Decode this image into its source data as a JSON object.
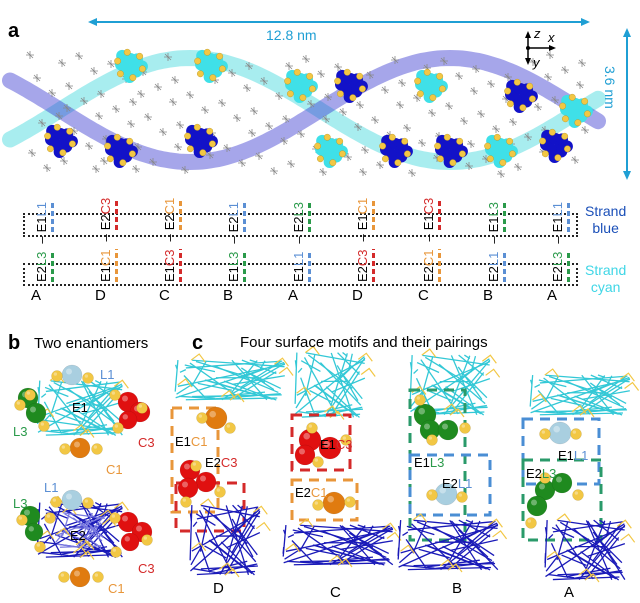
{
  "colors": {
    "blue_strand": "#1a1aa8",
    "cyan_strand": "#3fd6dc",
    "gold": "#f2c744",
    "dim_arrow": "#1f9fd4",
    "L1": "#5b8fd4",
    "L3": "#2a9a4a",
    "C1": "#e8963a",
    "C3": "#d42a2a",
    "L1_ball": "#a9cfe0",
    "L3_ball": "#1f8a1f",
    "C1_ball": "#e07b10",
    "C3_ball": "#e01010"
  },
  "panel_a": {
    "letter": "a",
    "length_label": "12.8 nm",
    "height_label": "3.6 nm",
    "axes": {
      "z": "z",
      "x": "x",
      "y": "y"
    },
    "strand_blue": [
      "Strand",
      "blue"
    ],
    "strand_cyan": [
      "Strand",
      "cyan"
    ],
    "columns": [
      {
        "motif": "A",
        "bottom": [
          {
            "t": "E2",
            "c": "k"
          },
          {
            "t": "L3",
            "c": "L3"
          }
        ],
        "top": [
          {
            "t": "E1",
            "c": "k"
          },
          {
            "t": "L1",
            "c": "L1"
          }
        ],
        "dash": "–"
      },
      {
        "motif": "D",
        "bottom": [
          {
            "t": "E1",
            "c": "k"
          },
          {
            "t": "C1",
            "c": "C1"
          }
        ],
        "top": [
          {
            "t": "E2",
            "c": "k"
          },
          {
            "t": "C3",
            "c": "C3"
          }
        ],
        "dash": "–"
      },
      {
        "motif": "C",
        "bottom": [
          {
            "t": "E1",
            "c": "k"
          },
          {
            "t": "C3",
            "c": "C3"
          }
        ],
        "top": [
          {
            "t": "E2",
            "c": "k"
          },
          {
            "t": "C1",
            "c": "C1"
          }
        ],
        "dash": "–"
      },
      {
        "motif": "B",
        "bottom": [
          {
            "t": "E1",
            "c": "k"
          },
          {
            "t": "L3",
            "c": "L3"
          }
        ],
        "top": [
          {
            "t": "E2",
            "c": "k"
          },
          {
            "t": "L1",
            "c": "L1"
          }
        ],
        "dash": "–"
      },
      {
        "motif": "A",
        "bottom": [
          {
            "t": "E1",
            "c": "k"
          },
          {
            "t": "L1",
            "c": "L1"
          }
        ],
        "top": [
          {
            "t": "E2",
            "c": "k"
          },
          {
            "t": "L3",
            "c": "L3"
          }
        ],
        "dash": "–"
      },
      {
        "motif": "D",
        "bottom": [
          {
            "t": "E2",
            "c": "k"
          },
          {
            "t": "C3",
            "c": "C3"
          }
        ],
        "top": [
          {
            "t": "E1",
            "c": "k"
          },
          {
            "t": "C1",
            "c": "C1"
          }
        ],
        "dash": "–"
      },
      {
        "motif": "C",
        "bottom": [
          {
            "t": "E2",
            "c": "k"
          },
          {
            "t": "C1",
            "c": "C1"
          }
        ],
        "top": [
          {
            "t": "E1",
            "c": "k"
          },
          {
            "t": "C3",
            "c": "C3"
          }
        ],
        "dash": "–"
      },
      {
        "motif": "B",
        "bottom": [
          {
            "t": "E2",
            "c": "k"
          },
          {
            "t": "L1",
            "c": "L1"
          }
        ],
        "top": [
          {
            "t": "E1",
            "c": "k"
          },
          {
            "t": "L3",
            "c": "L3"
          }
        ],
        "dash": "–"
      },
      {
        "motif": "A",
        "bottom": [
          {
            "t": "E2",
            "c": "k"
          },
          {
            "t": "L3",
            "c": "L3"
          }
        ],
        "top": [
          {
            "t": "E1",
            "c": "k"
          },
          {
            "t": "L1",
            "c": "L1"
          }
        ],
        "dash": "–"
      }
    ]
  },
  "panel_b": {
    "letter": "b",
    "title": "Two enantiomers",
    "e1": {
      "center": "E1",
      "L1": "L1",
      "L3": "L3",
      "C1": "C1",
      "C3": "C3"
    },
    "e2": {
      "center": "E2",
      "L1": "L1",
      "L3": "L3",
      "C1": "C1",
      "C3": "C3"
    }
  },
  "panel_c": {
    "letter": "c",
    "title": "Four surface motifs and their pairings",
    "motifs": [
      {
        "name": "D",
        "upper": {
          "e": "E1",
          "l": "C1"
        },
        "lower": {
          "e": "E2",
          "l": "C3"
        }
      },
      {
        "name": "C",
        "upper": {
          "e": "E1",
          "l": "C3"
        },
        "lower": {
          "e": "E2",
          "l": "C1"
        }
      },
      {
        "name": "B",
        "upper": {
          "e": "E1",
          "l": "L3"
        },
        "lower": {
          "e": "E2",
          "l": "L1"
        }
      },
      {
        "name": "A",
        "upper": {
          "e": "E1",
          "l": "L1"
        },
        "lower": {
          "e": "E2",
          "l": "L3"
        }
      }
    ]
  }
}
